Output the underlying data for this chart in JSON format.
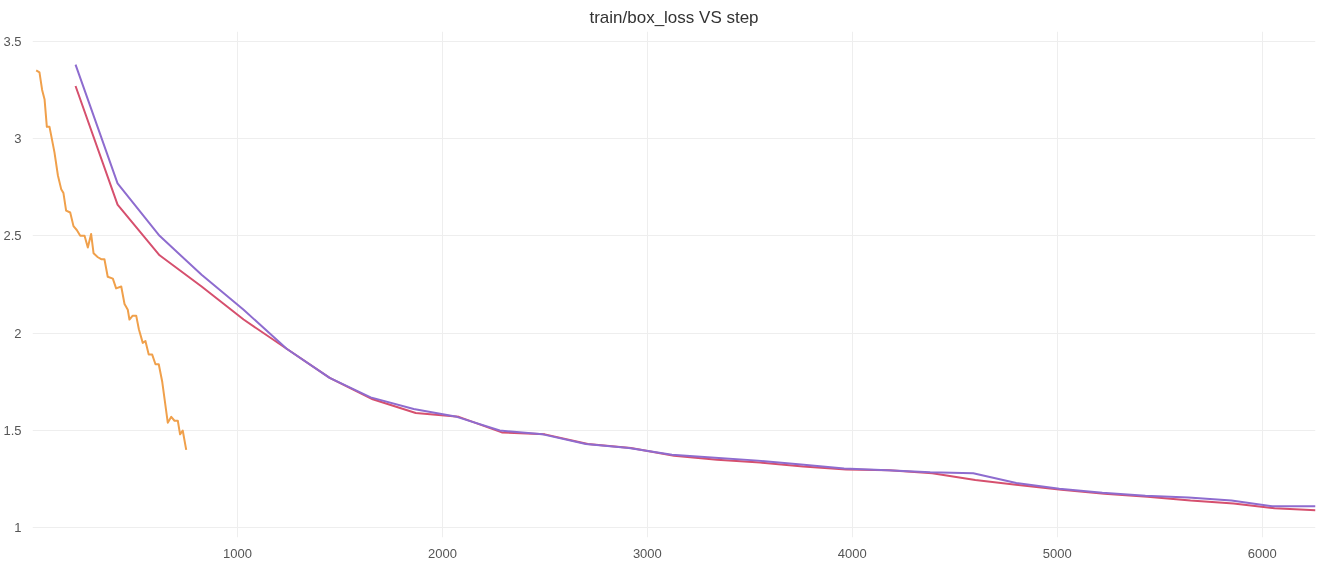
{
  "chart_data": {
    "type": "line",
    "title": "train/box_loss VS step",
    "xlim": [
      0,
      6260
    ],
    "ylim": [
      0.95,
      3.55
    ],
    "xticks": [
      1000,
      2000,
      3000,
      4000,
      5000,
      6000
    ],
    "yticks": [
      1,
      1.5,
      2,
      2.5,
      3,
      3.5
    ],
    "grid": true,
    "marker": "none",
    "line_style": "solid",
    "series": [
      {
        "color": "#f0a04b",
        "x": [
          18,
          34,
          47,
          59,
          70,
          83,
          107,
          124,
          140,
          151,
          164,
          184,
          200,
          216,
          233,
          254,
          270,
          286,
          298,
          319,
          335,
          351,
          367,
          392,
          408,
          433,
          449,
          465,
          473,
          489,
          506,
          519,
          538,
          551,
          567,
          584,
          600,
          616,
          633,
          660,
          677,
          693,
          709,
          720,
          733,
          750
        ],
        "values": [
          3.35,
          3.34,
          3.25,
          3.2,
          3.06,
          3.06,
          2.93,
          2.81,
          2.74,
          2.72,
          2.63,
          2.62,
          2.55,
          2.53,
          2.5,
          2.5,
          2.44,
          2.51,
          2.41,
          2.39,
          2.38,
          2.38,
          2.29,
          2.28,
          2.23,
          2.24,
          2.15,
          2.12,
          2.07,
          2.09,
          2.09,
          2.02,
          1.95,
          1.96,
          1.89,
          1.89,
          1.84,
          1.84,
          1.75,
          1.54,
          1.57,
          1.55,
          1.55,
          1.48,
          1.5,
          1.4
        ]
      },
      {
        "color": "#d6506e",
        "x": [
          210,
          415,
          620,
          825,
          1030,
          1240,
          1450,
          1660,
          1870,
          2080,
          2290,
          2500,
          2710,
          2920,
          3130,
          3340,
          3550,
          3760,
          3970,
          4180,
          4390,
          4600,
          4810,
          5020,
          5230,
          5440,
          5650,
          5860,
          6060,
          6260
        ],
        "values": [
          3.27,
          2.66,
          2.4,
          2.24,
          2.07,
          1.92,
          1.77,
          1.66,
          1.59,
          1.57,
          1.49,
          1.48,
          1.43,
          1.41,
          1.37,
          1.35,
          1.335,
          1.315,
          1.3,
          1.295,
          1.28,
          1.245,
          1.22,
          1.195,
          1.175,
          1.16,
          1.14,
          1.125,
          1.1,
          1.09
        ]
      },
      {
        "color": "#8e6ccf",
        "x": [
          210,
          415,
          620,
          825,
          1030,
          1240,
          1450,
          1650,
          1860,
          2070,
          2280,
          2490,
          2700,
          2910,
          3120,
          3330,
          3540,
          3750,
          3960,
          4170,
          4380,
          4590,
          4800,
          5010,
          5220,
          5430,
          5640,
          5850,
          6050,
          6260
        ],
        "values": [
          3.38,
          2.77,
          2.5,
          2.3,
          2.12,
          1.92,
          1.77,
          1.67,
          1.61,
          1.57,
          1.5,
          1.48,
          1.43,
          1.41,
          1.375,
          1.36,
          1.345,
          1.325,
          1.305,
          1.295,
          1.285,
          1.28,
          1.23,
          1.2,
          1.18,
          1.165,
          1.155,
          1.14,
          1.11,
          1.11
        ]
      }
    ]
  }
}
